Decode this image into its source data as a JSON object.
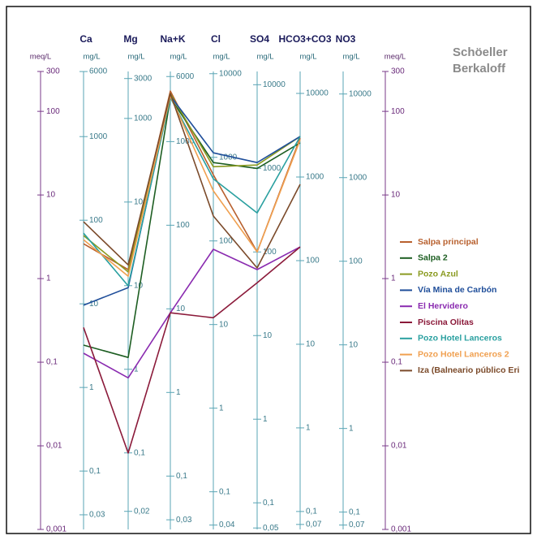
{
  "chart_data": {
    "type": "line",
    "title": [
      "Schöeller",
      "Berkaloff"
    ],
    "y_unit": "meq/L",
    "column_unit": "mg/L",
    "log_scale": true,
    "categories": [
      "Ca",
      "Mg",
      "Na+K",
      "Cl",
      "SO4",
      "HCO3+CO3",
      "NO3"
    ],
    "ylim": [
      0.001,
      300
    ],
    "yticks": [
      300,
      100,
      10,
      1,
      {
        "value": 0.1,
        "label": "0,1"
      },
      {
        "value": 0.01,
        "label": "0,01"
      },
      {
        "value": 0.001,
        "label": "0,001"
      }
    ],
    "column_axes": [
      {
        "ylim": [
          0.02004,
          6012
        ],
        "yticks": [
          6000,
          1000,
          100,
          10,
          1,
          {
            "value": 0.1,
            "label": "0,1"
          },
          {
            "value": 0.03,
            "label": "0,03"
          }
        ]
      },
      {
        "ylim": [
          0.01215,
          3645
        ],
        "yticks": [
          3000,
          1000,
          100,
          10,
          1,
          {
            "value": 0.1,
            "label": "0,1"
          },
          {
            "value": 0.02,
            "label": "0,02"
          }
        ]
      },
      {
        "ylim": [
          0.023,
          6900
        ],
        "yticks": [
          6000,
          1000,
          100,
          10,
          1,
          {
            "value": 0.1,
            "label": "0,1"
          },
          {
            "value": 0.03,
            "label": "0,03"
          }
        ]
      },
      {
        "ylim": [
          0.03545,
          10635
        ],
        "yticks": [
          10000,
          1000,
          100,
          10,
          1,
          {
            "value": 0.1,
            "label": "0,1"
          },
          {
            "value": 0.04,
            "label": "0,04"
          }
        ]
      },
      {
        "ylim": [
          0.04803,
          14409
        ],
        "yticks": [
          10000,
          1000,
          100,
          10,
          1,
          {
            "value": 0.1,
            "label": "0,1"
          },
          {
            "value": 0.05,
            "label": "0,05"
          }
        ]
      },
      {
        "ylim": [
          0.061,
          18300
        ],
        "yticks": [
          10000,
          1000,
          100,
          10,
          1,
          {
            "value": 0.1,
            "label": "0,1"
          },
          {
            "value": 0.07,
            "label": "0,07"
          }
        ]
      },
      {
        "ylim": [
          0.062,
          18600
        ],
        "yticks": [
          10000,
          1000,
          100,
          10,
          1,
          {
            "value": 0.1,
            "label": "0,1"
          },
          {
            "value": 0.07,
            "label": "0,07"
          }
        ]
      }
    ],
    "series": [
      {
        "name": "Salpa principal",
        "color": "#b8602e",
        "values": [
          2.61,
          1.28,
          175,
          17.4,
          2.09,
          48,
          null
        ]
      },
      {
        "name": "Salpa 2",
        "color": "#1d5e22",
        "values": [
          0.16,
          0.114,
          146,
          24.4,
          20.8,
          42,
          null
        ]
      },
      {
        "name": "Pozo Azul",
        "color": "#8a9a20",
        "values": [
          3.27,
          1.2,
          163,
          21.8,
          22.8,
          50,
          null
        ]
      },
      {
        "name": "Vía Mina de Carbón",
        "color": "#1f4e9a",
        "values": [
          0.48,
          0.78,
          153,
          31.9,
          24.4,
          50,
          null
        ]
      },
      {
        "name": "El Hervidero",
        "color": "#8a2bb0",
        "values": [
          0.128,
          0.065,
          0.39,
          2.24,
          1.28,
          2.39,
          null
        ]
      },
      {
        "name": "Piscina Olitas",
        "color": "#8b1a3a",
        "values": [
          0.26,
          0.0082,
          0.39,
          0.34,
          0.89,
          2.39,
          null
        ]
      },
      {
        "name": "Pozo Hotel Lanceros",
        "color": "#2aa0a0",
        "values": [
          3.5,
          0.82,
          146,
          15.6,
          6.1,
          50,
          null
        ]
      },
      {
        "name": "Pozo Hotel Lanceros 2",
        "color": "#f0a050",
        "values": [
          2.92,
          1.07,
          153,
          11.2,
          2.09,
          45.5,
          null
        ]
      },
      {
        "name": "Iza (Balneario público Eri",
        "color": "#7b4a2a",
        "values": [
          4.78,
          1.46,
          163,
          5.6,
          1.34,
          13.4,
          null
        ]
      }
    ]
  }
}
